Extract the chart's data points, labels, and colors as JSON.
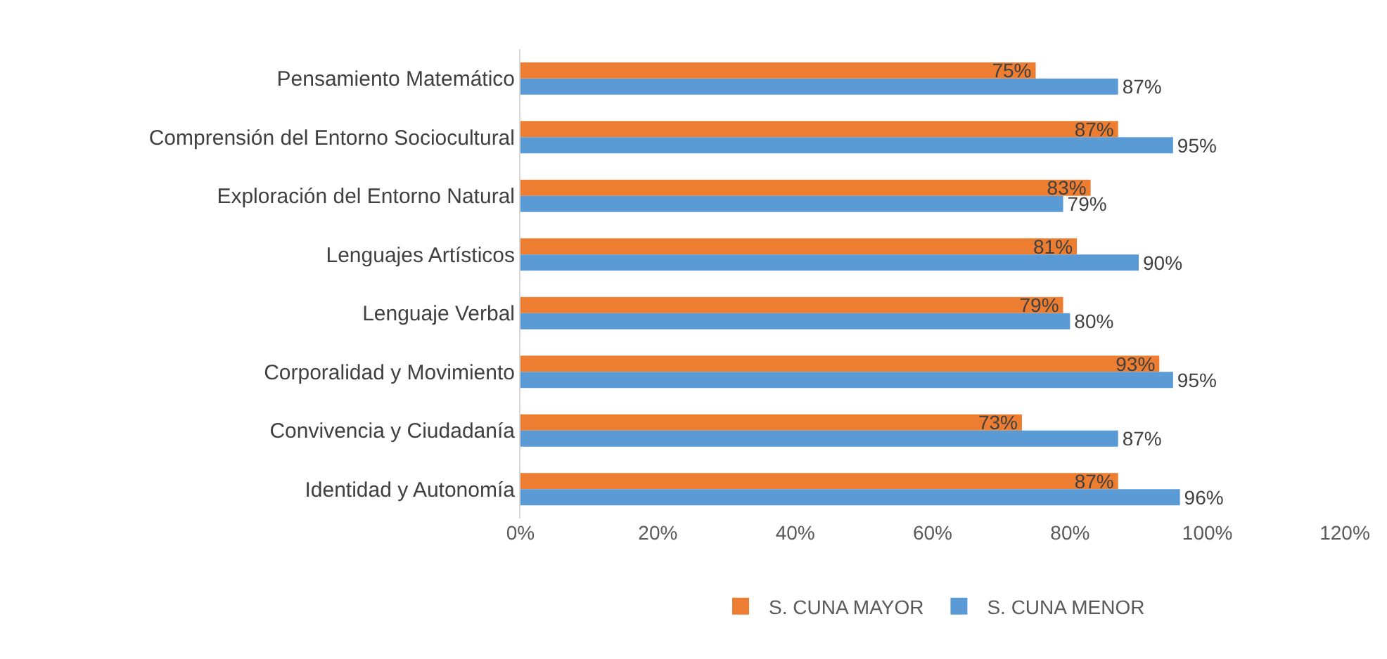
{
  "chart_data": {
    "type": "bar",
    "orientation": "horizontal",
    "categories": [
      "Pensamiento Matemático",
      "Comprensión del Entorno Sociocultural",
      "Exploración del Entorno Natural",
      "Lenguajes Artísticos",
      "Lenguaje Verbal",
      "Corporalidad y Movimiento",
      "Convivencia y Ciudadanía",
      "Identidad y Autonomía"
    ],
    "series": [
      {
        "name": "S. CUNA MAYOR",
        "color": "#ed7d31",
        "values": [
          75,
          87,
          83,
          81,
          79,
          93,
          73,
          87
        ],
        "value_labels": [
          "75%",
          "87%",
          "83%",
          "81%",
          "79%",
          "93%",
          "73%",
          "87%"
        ]
      },
      {
        "name": "S. CUNA MENOR",
        "color": "#5b9bd5",
        "values": [
          87,
          95,
          79,
          90,
          80,
          95,
          87,
          96
        ],
        "value_labels": [
          "87%",
          "95%",
          "79%",
          "90%",
          "80%",
          "95%",
          "87%",
          "96%"
        ]
      }
    ],
    "xlim": [
      0,
      120
    ],
    "xticks": [
      {
        "value": 0,
        "label": "0%"
      },
      {
        "value": 20,
        "label": "20%"
      },
      {
        "value": 40,
        "label": "40%"
      },
      {
        "value": 60,
        "label": "60%"
      },
      {
        "value": 80,
        "label": "80%"
      },
      {
        "value": 100,
        "label": "100%"
      },
      {
        "value": 120,
        "label": "120%"
      }
    ],
    "grid": false,
    "legend": "bottom"
  }
}
